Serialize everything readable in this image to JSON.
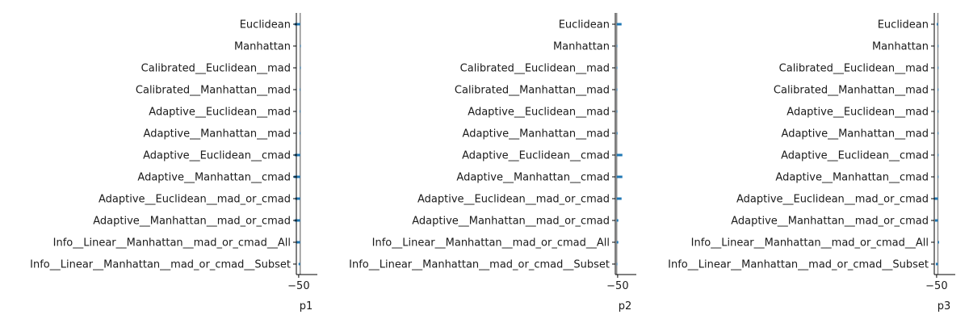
{
  "chart_data": [
    {
      "type": "bar",
      "orientation": "horizontal",
      "xlabel": "p1",
      "xticks": [
        -50
      ],
      "xlim": [
        -55,
        -10
      ],
      "reference_line": -46.8,
      "categories": [
        "Euclidean",
        "Manhattan",
        "Calibrated__Euclidean__mad",
        "Calibrated__Manhattan__mad",
        "Adaptive__Euclidean__mad",
        "Adaptive__Manhattan__mad",
        "Adaptive__Euclidean__cmad",
        "Adaptive__Manhattan__cmad",
        "Adaptive__Euclidean__mad_or_cmad",
        "Adaptive__Manhattan__mad_or_cmad",
        "Info__Linear__Manhattan__mad_or_cmad__All",
        "Info__Linear__Manhattan__mad_or_cmad__Subset"
      ],
      "values": [
        -7,
        0,
        0,
        -0.5,
        -0.5,
        -0.5,
        -7,
        -8,
        -6,
        -7,
        -5,
        -2
      ],
      "color": "#1f77b4",
      "grid": false
    },
    {
      "type": "bar",
      "orientation": "horizontal",
      "xlabel": "p2",
      "xticks": [
        -50
      ],
      "xlim": [
        -55,
        -10
      ],
      "reference_line": -52.0,
      "categories": [
        "Euclidean",
        "Manhattan",
        "Calibrated__Euclidean__mad",
        "Calibrated__Manhattan__mad",
        "Adaptive__Euclidean__mad",
        "Adaptive__Manhattan__mad",
        "Adaptive__Euclidean__cmad",
        "Adaptive__Manhattan__cmad",
        "Adaptive__Euclidean__mad_or_cmad",
        "Adaptive__Manhattan__mad_or_cmad",
        "Info__Linear__Manhattan__mad_or_cmad__All",
        "Info__Linear__Manhattan__mad_or_cmad__Subset"
      ],
      "values": [
        6,
        0.5,
        0,
        0,
        0.5,
        1,
        7,
        7,
        6,
        2,
        2,
        0
      ],
      "color": "#1f77b4",
      "grid": false
    },
    {
      "type": "bar",
      "orientation": "horizontal",
      "xlabel": "p3",
      "xticks": [
        -50
      ],
      "xlim": [
        -55,
        -10
      ],
      "reference_line": -47.3,
      "categories": [
        "Euclidean",
        "Manhattan",
        "Calibrated__Euclidean__mad",
        "Calibrated__Manhattan__mad",
        "Adaptive__Euclidean__mad",
        "Adaptive__Manhattan__mad",
        "Adaptive__Euclidean__cmad",
        "Adaptive__Manhattan__cmad",
        "Adaptive__Euclidean__mad_or_cmad",
        "Adaptive__Manhattan__mad_or_cmad",
        "Info__Linear__Manhattan__mad_or_cmad__All",
        "Info__Linear__Manhattan__mad_or_cmad__Subset"
      ],
      "values": [
        -1.5,
        0.5,
        0.5,
        0.5,
        0.5,
        0.5,
        0.5,
        0.5,
        -5,
        -3.5,
        1.5,
        -2.5
      ],
      "color": "#1f77b4",
      "grid": false
    }
  ]
}
